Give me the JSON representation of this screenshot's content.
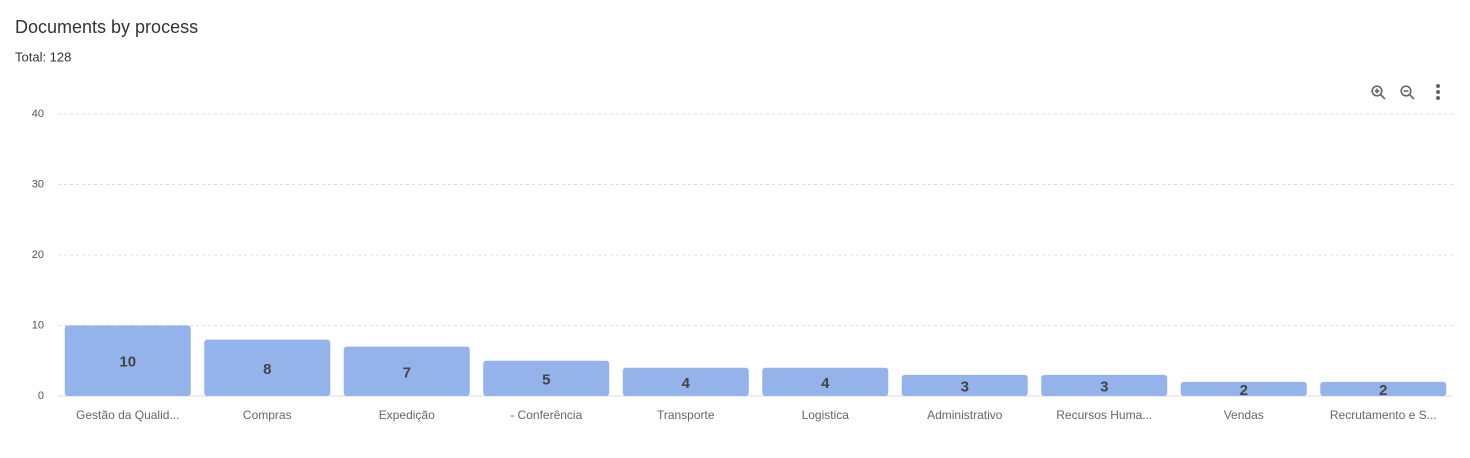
{
  "chart_data": {
    "type": "bar",
    "title": "Documents by process",
    "subtitle": "Total: 128",
    "categories": [
      "Gestão da Qualid...",
      "Compras",
      "Expedição",
      "- Conferência",
      "Transporte",
      "Logistica",
      "Administrativo",
      "Recursos Huma...",
      "Vendas",
      "Recrutamento e S..."
    ],
    "values": [
      10,
      8,
      7,
      5,
      4,
      4,
      3,
      3,
      2,
      2
    ],
    "color": "#93b3ea",
    "ylim": [
      0,
      40
    ],
    "yticks": [
      0,
      10,
      20,
      30,
      40
    ],
    "grid": true
  }
}
